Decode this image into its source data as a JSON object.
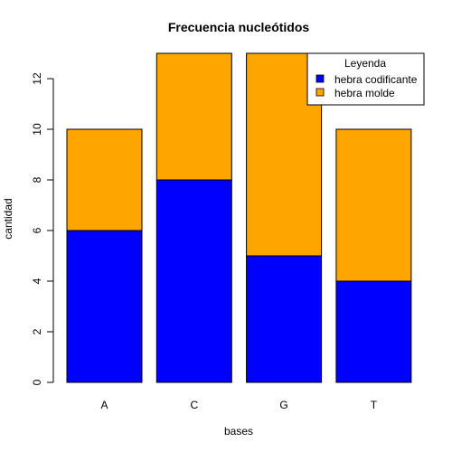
{
  "chart_data": {
    "type": "bar",
    "stacked": true,
    "title": "Frecuencia nucleótidos",
    "xlabel": "bases",
    "ylabel": "cantidad",
    "categories": [
      "A",
      "C",
      "G",
      "T"
    ],
    "series": [
      {
        "name": "hebra codificante",
        "values": [
          6,
          8,
          5,
          4
        ],
        "color": "#0000ff"
      },
      {
        "name": "hebra molde",
        "values": [
          4,
          5,
          8,
          6
        ],
        "color": "#ffa500"
      }
    ],
    "ylim": [
      0,
      13
    ],
    "yticks": [
      0,
      2,
      4,
      6,
      8,
      10,
      12
    ],
    "grid": false,
    "legend": {
      "title": "Leyenda",
      "position": "top-right"
    }
  }
}
